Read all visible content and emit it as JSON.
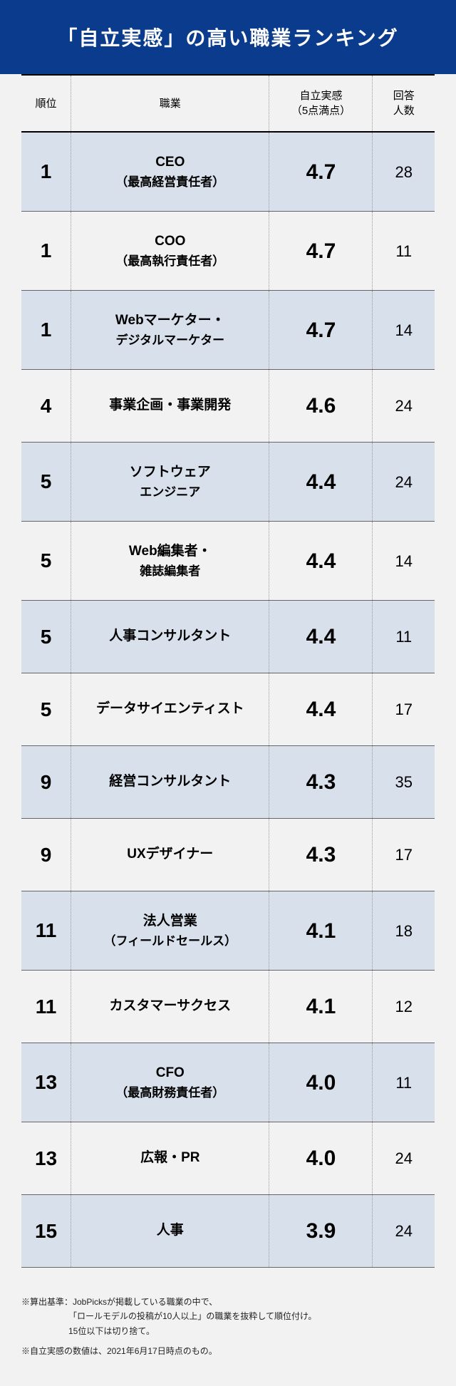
{
  "title": "「自立実感」の高い職業ランキング",
  "columns": {
    "rank": "順位",
    "job": "職業",
    "score": "自立実感\n（5点満点）",
    "count": "回答\n人数"
  },
  "rows": [
    {
      "rank": "1",
      "job_main": "CEO",
      "job_sub": "（最高経営責任者）",
      "score": "4.7",
      "count": "28",
      "shaded": true
    },
    {
      "rank": "1",
      "job_main": "COO",
      "job_sub": "（最高執行責任者）",
      "score": "4.7",
      "count": "11",
      "shaded": false
    },
    {
      "rank": "1",
      "job_main": "Webマーケター・",
      "job_sub": "デジタルマーケター",
      "score": "4.7",
      "count": "14",
      "shaded": true
    },
    {
      "rank": "4",
      "job_main": "事業企画・事業開発",
      "job_sub": "",
      "score": "4.6",
      "count": "24",
      "shaded": false
    },
    {
      "rank": "5",
      "job_main": "ソフトウェア",
      "job_sub": "エンジニア",
      "score": "4.4",
      "count": "24",
      "shaded": true
    },
    {
      "rank": "5",
      "job_main": "Web編集者・",
      "job_sub": "雑誌編集者",
      "score": "4.4",
      "count": "14",
      "shaded": false
    },
    {
      "rank": "5",
      "job_main": "人事コンサルタント",
      "job_sub": "",
      "score": "4.4",
      "count": "11",
      "shaded": true
    },
    {
      "rank": "5",
      "job_main": "データサイエンティスト",
      "job_sub": "",
      "score": "4.4",
      "count": "17",
      "shaded": false
    },
    {
      "rank": "9",
      "job_main": "経営コンサルタント",
      "job_sub": "",
      "score": "4.3",
      "count": "35",
      "shaded": true
    },
    {
      "rank": "9",
      "job_main": "UXデザイナー",
      "job_sub": "",
      "score": "4.3",
      "count": "17",
      "shaded": false
    },
    {
      "rank": "11",
      "job_main": "法人営業",
      "job_sub": "（フィールドセールス）",
      "score": "4.1",
      "count": "18",
      "shaded": true
    },
    {
      "rank": "11",
      "job_main": "カスタマーサクセス",
      "job_sub": "",
      "score": "4.1",
      "count": "12",
      "shaded": false
    },
    {
      "rank": "13",
      "job_main": "CFO",
      "job_sub": "（最高財務責任者）",
      "score": "4.0",
      "count": "11",
      "shaded": true
    },
    {
      "rank": "13",
      "job_main": "広報・PR",
      "job_sub": "",
      "score": "4.0",
      "count": "24",
      "shaded": false
    },
    {
      "rank": "15",
      "job_main": "人事",
      "job_sub": "",
      "score": "3.9",
      "count": "24",
      "shaded": true
    }
  ],
  "footnotes": {
    "note1_line1": "※算出基準：JobPicksが掲載している職業の中で、",
    "note1_line2": "「ロールモデルの投稿が10人以上」の職業を抜粋して順位付け。",
    "note1_line3": "15位以下は切り捨て。",
    "note2": "※自立実感の数値は、2021年6月17日時点のもの。"
  },
  "styling": {
    "header_bg": "#0a3b8c",
    "header_color": "#ffffff",
    "page_bg": "#f2f2f2",
    "shaded_row_bg": "#d8e0ec",
    "border_color": "#000000",
    "row_border": "#666666",
    "dotted_border": "#999999"
  }
}
